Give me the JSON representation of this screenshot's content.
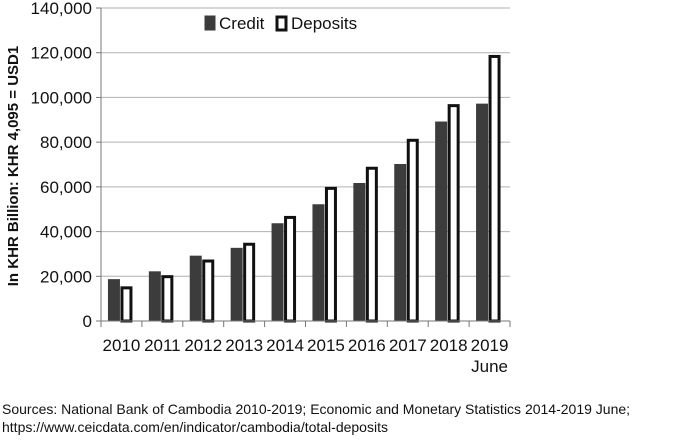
{
  "chart_data": {
    "type": "bar",
    "categories": [
      "2010",
      "2011",
      "2012",
      "2013",
      "2014",
      "2015",
      "2016",
      "2017",
      "2018",
      "2019\nJune"
    ],
    "series": [
      {
        "name": "Credit",
        "values": [
          18500,
          22000,
          29000,
          32500,
          43500,
          52000,
          61500,
          70000,
          89000,
          97000
        ],
        "color": "#3c3c3c"
      },
      {
        "name": "Deposits",
        "values": [
          15500,
          20500,
          27500,
          35000,
          47000,
          60000,
          69000,
          81500,
          97000,
          119000
        ],
        "color": "#ffffff"
      }
    ],
    "xlabel": "",
    "ylabel": "In KHR Billion: KHR 4,095 = USD1",
    "ylim": [
      0,
      140000
    ],
    "yticks": [
      "0",
      "20,000",
      "40,000",
      "60,000",
      "80,000",
      "100,000",
      "120,000",
      "140,000"
    ],
    "grid": true,
    "legend_position": "top"
  },
  "source_text": "Sources:  National Bank of Cambodia 2010-2019; Economic and Monetary Statistics 2014-2019 June; https://www.ceicdata.com/en/indicator/cambodia/total-deposits"
}
